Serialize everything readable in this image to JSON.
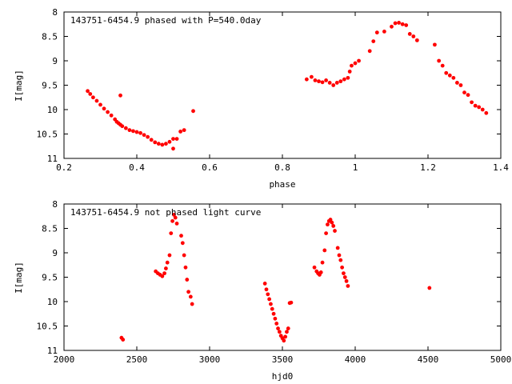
{
  "chart_data": [
    {
      "type": "scatter",
      "title": "143751-6454.9 phased with P=540.0day",
      "xlabel": "phase",
      "ylabel": "I[mag]",
      "xlim": [
        0.2,
        1.4
      ],
      "ylim": [
        11,
        8
      ],
      "y_inverted": true,
      "xticks": [
        "0.2",
        "0.4",
        "0.6",
        "0.8",
        "1",
        "1.2",
        "1.4"
      ],
      "xtick_values": [
        0.2,
        0.4,
        0.6,
        0.8,
        1.0,
        1.2,
        1.4
      ],
      "yticks": [
        "8",
        "8.5",
        "9",
        "9.5",
        "10",
        "10.5",
        "11"
      ],
      "ytick_values": [
        8,
        8.5,
        9,
        9.5,
        10,
        10.5,
        11
      ],
      "grid": false,
      "marker_color": "#ff0000",
      "x": [
        0.265,
        0.272,
        0.28,
        0.29,
        0.3,
        0.31,
        0.32,
        0.33,
        0.34,
        0.345,
        0.35,
        0.355,
        0.36,
        0.37,
        0.38,
        0.39,
        0.4,
        0.41,
        0.42,
        0.43,
        0.44,
        0.45,
        0.46,
        0.47,
        0.48,
        0.49,
        0.5,
        0.5,
        0.51,
        0.52,
        0.53,
        0.355,
        0.555,
        0.8667,
        0.88,
        0.89,
        0.9,
        0.91,
        0.92,
        0.93,
        0.94,
        0.95,
        0.96,
        0.97,
        0.98,
        0.985,
        0.99,
        1.0,
        1.01,
        1.04,
        1.05,
        1.06,
        1.08,
        1.1,
        1.11,
        1.12,
        1.13,
        1.14,
        1.15,
        1.16,
        1.17,
        1.2185,
        1.23,
        1.24,
        1.25,
        1.26,
        1.27,
        1.28,
        1.29,
        1.3,
        1.31,
        1.32,
        1.33,
        1.34,
        1.35,
        1.36
      ],
      "y": [
        9.62,
        9.68,
        9.75,
        9.82,
        9.9,
        9.98,
        10.05,
        10.12,
        10.2,
        10.25,
        10.28,
        10.31,
        10.34,
        10.38,
        10.42,
        10.44,
        10.46,
        10.48,
        10.52,
        10.56,
        10.62,
        10.67,
        10.7,
        10.72,
        10.7,
        10.66,
        10.6,
        10.8,
        10.6,
        10.45,
        10.42,
        9.71,
        10.03,
        9.38,
        9.33,
        9.4,
        9.42,
        9.44,
        9.4,
        9.45,
        9.5,
        9.45,
        9.42,
        9.38,
        9.35,
        9.22,
        9.1,
        9.05,
        9.0,
        8.8,
        8.6,
        8.42,
        8.4,
        8.3,
        8.23,
        8.22,
        8.25,
        8.27,
        8.45,
        8.5,
        8.58,
        8.67,
        9.0,
        9.1,
        9.25,
        9.3,
        9.35,
        9.45,
        9.5,
        9.65,
        9.7,
        9.85,
        9.92,
        9.95,
        10.0,
        10.07
      ]
    },
    {
      "type": "scatter",
      "title": "143751-6454.9 not phased light curve",
      "xlabel": "hjd0",
      "ylabel": "I[mag]",
      "xlim": [
        2000,
        5000
      ],
      "ylim": [
        11,
        8
      ],
      "y_inverted": true,
      "xticks": [
        "2000",
        "2500",
        "3000",
        "3500",
        "4000",
        "4500",
        "5000"
      ],
      "xtick_values": [
        2000,
        2500,
        3000,
        3500,
        4000,
        4500,
        5000
      ],
      "yticks": [
        "8",
        "8.5",
        "9",
        "9.5",
        "10",
        "10.5",
        "11"
      ],
      "ytick_values": [
        8,
        8.5,
        9,
        9.5,
        10,
        10.5,
        11
      ],
      "grid": false,
      "marker_color": "#ff0000",
      "x": [
        2395,
        2405,
        2630,
        2645,
        2660,
        2675,
        2690,
        2700,
        2710,
        2725,
        2735,
        2745,
        2755,
        2765,
        2775,
        2805,
        2815,
        2825,
        2835,
        2845,
        2855,
        2870,
        2880,
        3380,
        3390,
        3400,
        3410,
        3420,
        3430,
        3440,
        3450,
        3460,
        3470,
        3480,
        3490,
        3500,
        3510,
        3520,
        3530,
        3540,
        3550,
        3560,
        3720,
        3735,
        3745,
        3755,
        3765,
        3775,
        3790,
        3800,
        3810,
        3820,
        3830,
        3840,
        3850,
        3860,
        3880,
        3890,
        3900,
        3910,
        3920,
        3930,
        3940,
        3950,
        4510
      ],
      "y": [
        10.74,
        10.78,
        9.38,
        9.42,
        9.45,
        9.48,
        9.42,
        9.32,
        9.2,
        9.05,
        8.6,
        8.35,
        8.22,
        8.28,
        8.4,
        8.65,
        8.8,
        9.05,
        9.3,
        9.55,
        9.8,
        9.9,
        10.05,
        9.63,
        9.75,
        9.85,
        9.95,
        10.05,
        10.15,
        10.25,
        10.35,
        10.45,
        10.55,
        10.62,
        10.7,
        10.75,
        10.8,
        10.72,
        10.62,
        10.55,
        10.03,
        10.02,
        9.3,
        9.38,
        9.42,
        9.45,
        9.4,
        9.2,
        8.95,
        8.6,
        8.42,
        8.35,
        8.32,
        8.38,
        8.45,
        8.55,
        8.9,
        9.05,
        9.15,
        9.3,
        9.42,
        9.5,
        9.58,
        9.68,
        9.72
      ]
    }
  ]
}
